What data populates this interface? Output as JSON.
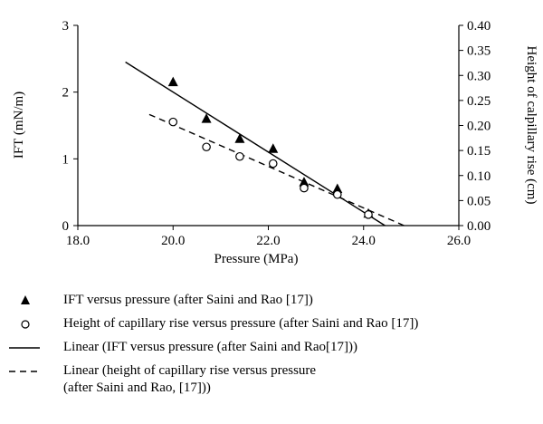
{
  "chart_data": {
    "type": "scatter",
    "xlabel": "Pressure (MPa)",
    "ylabel": "IFT (mN/m)",
    "y2label": "Height of calpillary rise (cm)",
    "xlim": [
      18.0,
      26.0
    ],
    "ylim": [
      0,
      3
    ],
    "y2lim": [
      0,
      0.4
    ],
    "x_ticks": [
      "18.0",
      "20.0",
      "22.0",
      "24.0",
      "26.0"
    ],
    "x_tick_values": [
      18,
      20,
      22,
      24,
      26
    ],
    "y_ticks": [
      "0",
      "1",
      "2",
      "3"
    ],
    "y_tick_values": [
      0,
      1,
      2,
      3
    ],
    "y2_ticks": [
      "0.00",
      "0.05",
      "0.10",
      "0.15",
      "0.20",
      "0.25",
      "0.30",
      "0.35",
      "0.40"
    ],
    "y2_tick_values": [
      0,
      0.05,
      0.1,
      0.15,
      0.2,
      0.25,
      0.3,
      0.35,
      0.4
    ],
    "grid": false,
    "legend_position": "bottom",
    "series": [
      {
        "name": "IFT versus pressure (after Saini and Rao [17])",
        "marker": "filled-triangle",
        "axis": "left",
        "x": [
          20.0,
          20.7,
          21.4,
          22.1,
          22.75,
          23.45,
          24.1
        ],
        "y": [
          2.15,
          1.6,
          1.3,
          1.15,
          0.65,
          0.55,
          0.18
        ]
      },
      {
        "name": "Height of capillary rise versus pressure (after Saini and Rao [17])",
        "marker": "open-circle",
        "axis": "right",
        "x": [
          20.0,
          20.7,
          21.4,
          22.1,
          22.75,
          23.45,
          24.1
        ],
        "y": [
          0.207,
          0.157,
          0.138,
          0.124,
          0.075,
          0.062,
          0.022
        ]
      }
    ],
    "trendlines": [
      {
        "name": "Linear (IFT versus pressure (after Saini and Rao[17]))",
        "style": "solid",
        "axis": "left",
        "x": [
          19.0,
          24.45
        ],
        "y": [
          2.45,
          0
        ]
      },
      {
        "name": "Linear (height of capillary rise versus pressure\n(after Saini and Rao, [17]))",
        "style": "dashed",
        "axis": "right",
        "x": [
          19.5,
          24.85
        ],
        "y": [
          0.222,
          0
        ]
      }
    ]
  }
}
